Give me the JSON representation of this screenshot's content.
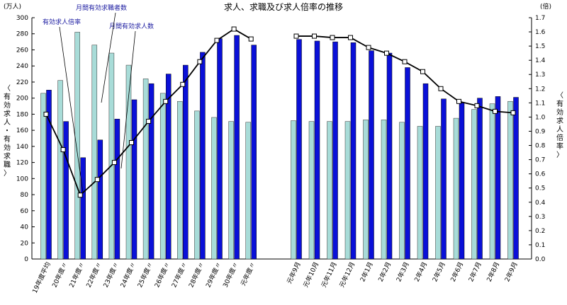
{
  "chart_data": {
    "type": "bar",
    "title": "求人、求職及び求人倍率の推移",
    "left_unit": "(万人)",
    "right_unit": "(倍)",
    "ylabel_left": "〈有効求人・有効求職〉",
    "ylabel_right": "〈有効求人倍率〉",
    "ylim_left": [
      0,
      300
    ],
    "ylim_right": [
      0.0,
      1.7
    ],
    "grid": false,
    "categories": [
      "19年度平均",
      "20年度〃",
      "21年度〃",
      "22年度〃",
      "23年度〃",
      "24年度〃",
      "25年度〃",
      "26年度〃",
      "27年度〃",
      "28年度〃",
      "29年度〃",
      "30年度〃",
      "元年度〃",
      "元年9月",
      "元年10月",
      "元年11月",
      "元年12月",
      "2年1月",
      "2年2月",
      "2年3月",
      "2年4月",
      "2年5月",
      "2年6月",
      "2年7月",
      "2年8月",
      "2年9月"
    ],
    "series": [
      {
        "name": "月間有効求職者数",
        "color": "#a8dcd8",
        "values": [
          206,
          222,
          282,
          266,
          256,
          241,
          224,
          206,
          196,
          184,
          176,
          171,
          170,
          172,
          171,
          171,
          171,
          173,
          173,
          170,
          165,
          165,
          175,
          186,
          193,
          196
        ]
      },
      {
        "name": "月間有効求人数",
        "color": "#0a10d8",
        "values": [
          210,
          171,
          126,
          148,
          174,
          198,
          218,
          230,
          241,
          257,
          274,
          278,
          266,
          273,
          271,
          270,
          269,
          259,
          256,
          238,
          218,
          199,
          194,
          200,
          202,
          201
        ]
      },
      {
        "name": "有効求人倍率",
        "type": "line",
        "color": "#000000",
        "values": [
          1.02,
          0.77,
          0.45,
          0.56,
          0.68,
          0.82,
          0.97,
          1.11,
          1.23,
          1.39,
          1.54,
          1.62,
          1.55,
          1.57,
          1.57,
          1.56,
          1.56,
          1.49,
          1.45,
          1.39,
          1.32,
          1.2,
          1.11,
          1.08,
          1.04,
          1.03
        ]
      }
    ],
    "left_ticks": [
      "0",
      "20",
      "40",
      "60",
      "80",
      "100",
      "120",
      "140",
      "160",
      "180",
      "200",
      "220",
      "240",
      "260",
      "280",
      "300"
    ],
    "right_ticks": [
      "0.0",
      "0.1",
      "0.2",
      "0.3",
      "0.4",
      "0.5",
      "0.6",
      "0.7",
      "0.8",
      "0.9",
      "1.0",
      "1.1",
      "1.2",
      "1.3",
      "1.4",
      "1.5",
      "1.6",
      "1.7"
    ],
    "annotations": [
      "有効求人倍率",
      "月間有効求職者数",
      "月間有効求人数"
    ]
  }
}
